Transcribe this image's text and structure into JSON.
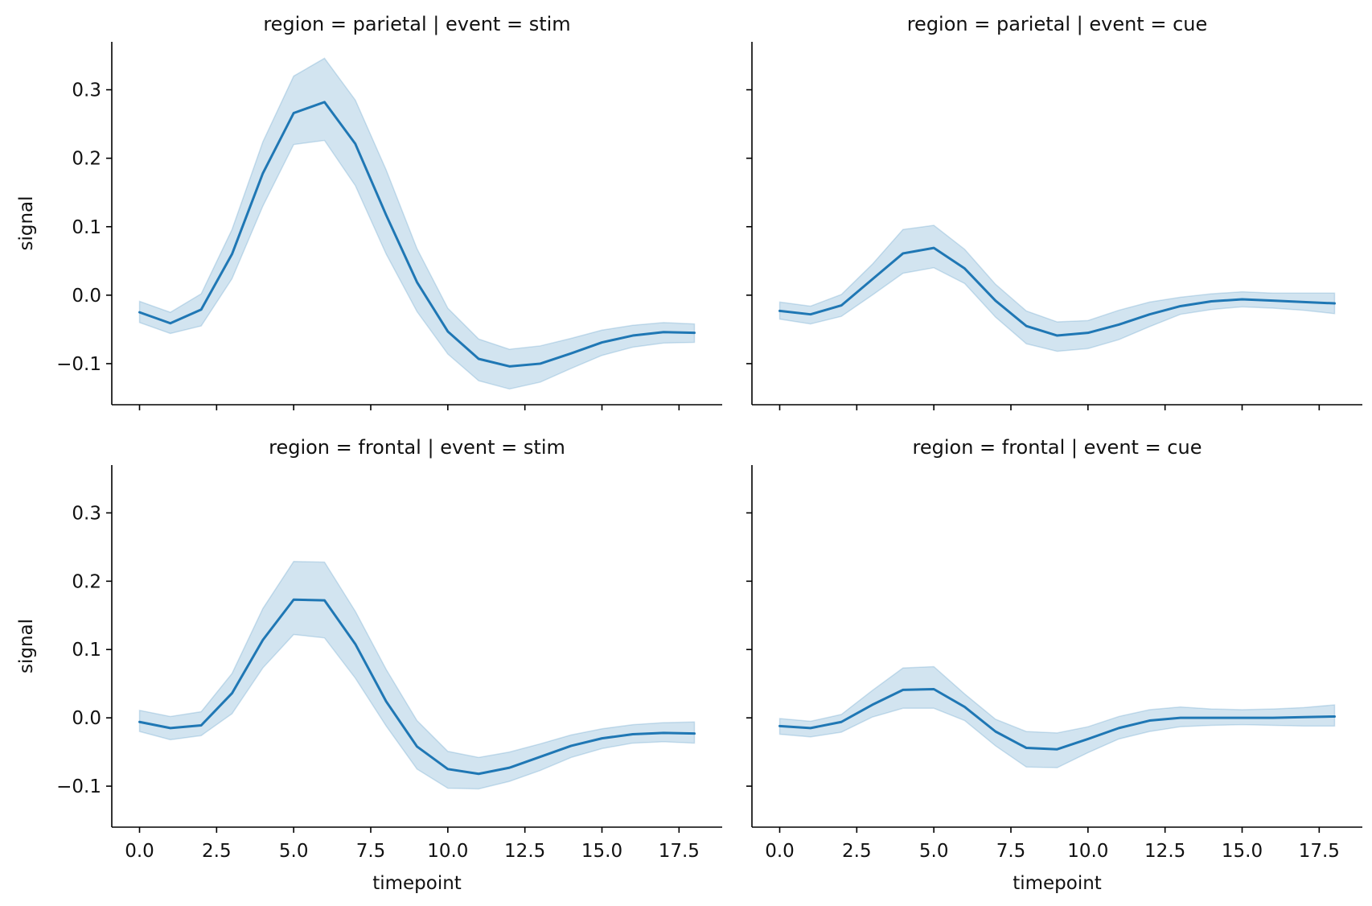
{
  "chart_data": {
    "type": "line",
    "x_ticks": [
      0.0,
      2.5,
      5.0,
      7.5,
      10.0,
      12.5,
      15.0,
      17.5
    ],
    "x_tick_labels": [
      "0.0",
      "2.5",
      "5.0",
      "7.5",
      "10.0",
      "12.5",
      "15.0",
      "17.5"
    ],
    "y_ticks": [
      -0.1,
      0.0,
      0.1,
      0.2,
      0.3
    ],
    "y_tick_labels": [
      "−0.1",
      "0.0",
      "0.1",
      "0.2",
      "0.3"
    ],
    "xlim": [
      -0.9,
      18.9
    ],
    "ylim": [
      -0.16,
      0.37
    ],
    "x": [
      0,
      1,
      2,
      3,
      4,
      5,
      6,
      7,
      8,
      9,
      10,
      11,
      12,
      13,
      14,
      15,
      16,
      17,
      18
    ],
    "line_color": "#1f77b4",
    "band_color": "#1f77b4",
    "grid": false,
    "legend": "none",
    "xlabel": "timepoint",
    "ylabel": "signal",
    "panels": [
      {
        "title": "region = parietal | event = stim",
        "mean": [
          -0.025,
          -0.041,
          -0.021,
          0.06,
          0.178,
          0.266,
          0.282,
          0.221,
          0.117,
          0.019,
          -0.053,
          -0.093,
          -0.104,
          -0.1,
          -0.085,
          -0.069,
          -0.059,
          -0.054,
          -0.055
        ],
        "lower": [
          -0.04,
          -0.056,
          -0.045,
          0.024,
          0.13,
          0.22,
          0.226,
          0.16,
          0.06,
          -0.024,
          -0.086,
          -0.125,
          -0.137,
          -0.127,
          -0.107,
          -0.088,
          -0.076,
          -0.07,
          -0.069
        ],
        "upper": [
          -0.009,
          -0.025,
          0.002,
          0.096,
          0.224,
          0.32,
          0.346,
          0.285,
          0.183,
          0.068,
          -0.019,
          -0.064,
          -0.079,
          -0.074,
          -0.063,
          -0.051,
          -0.044,
          -0.04,
          -0.042
        ]
      },
      {
        "title": "region = parietal | event = cue",
        "mean": [
          -0.023,
          -0.028,
          -0.015,
          0.023,
          0.061,
          0.069,
          0.039,
          -0.008,
          -0.045,
          -0.059,
          -0.055,
          -0.043,
          -0.028,
          -0.016,
          -0.009,
          -0.006,
          -0.008,
          -0.01,
          -0.012
        ],
        "lower": [
          -0.035,
          -0.042,
          -0.031,
          0.0,
          0.032,
          0.04,
          0.017,
          -0.032,
          -0.071,
          -0.082,
          -0.078,
          -0.065,
          -0.046,
          -0.028,
          -0.021,
          -0.017,
          -0.019,
          -0.022,
          -0.027
        ],
        "upper": [
          -0.01,
          -0.016,
          0.001,
          0.045,
          0.096,
          0.102,
          0.067,
          0.016,
          -0.023,
          -0.039,
          -0.037,
          -0.022,
          -0.01,
          -0.003,
          0.002,
          0.005,
          0.003,
          0.003,
          0.003
        ]
      },
      {
        "title": "region = frontal | event = stim",
        "mean": [
          -0.006,
          -0.015,
          -0.011,
          0.036,
          0.114,
          0.173,
          0.172,
          0.108,
          0.024,
          -0.042,
          -0.075,
          -0.082,
          -0.073,
          -0.057,
          -0.041,
          -0.03,
          -0.024,
          -0.022,
          -0.023
        ],
        "lower": [
          -0.02,
          -0.032,
          -0.026,
          0.006,
          0.073,
          0.122,
          0.117,
          0.058,
          -0.012,
          -0.075,
          -0.103,
          -0.104,
          -0.093,
          -0.077,
          -0.058,
          -0.045,
          -0.037,
          -0.035,
          -0.037
        ],
        "upper": [
          0.011,
          0.002,
          0.009,
          0.065,
          0.16,
          0.229,
          0.228,
          0.156,
          0.071,
          -0.004,
          -0.049,
          -0.058,
          -0.05,
          -0.038,
          -0.025,
          -0.016,
          -0.01,
          -0.007,
          -0.006
        ]
      },
      {
        "title": "region = frontal | event = cue",
        "mean": [
          -0.012,
          -0.015,
          -0.006,
          0.019,
          0.041,
          0.042,
          0.016,
          -0.02,
          -0.044,
          -0.046,
          -0.031,
          -0.015,
          -0.004,
          0.0,
          0.0,
          0.0,
          0.0,
          0.001,
          0.002
        ],
        "lower": [
          -0.024,
          -0.028,
          -0.021,
          0.001,
          0.014,
          0.014,
          -0.004,
          -0.041,
          -0.072,
          -0.073,
          -0.051,
          -0.031,
          -0.02,
          -0.013,
          -0.011,
          -0.01,
          -0.011,
          -0.012,
          -0.012
        ],
        "upper": [
          -0.001,
          -0.005,
          0.005,
          0.04,
          0.073,
          0.075,
          0.035,
          -0.002,
          -0.02,
          -0.022,
          -0.013,
          0.002,
          0.012,
          0.016,
          0.013,
          0.012,
          0.013,
          0.015,
          0.019
        ]
      }
    ]
  }
}
